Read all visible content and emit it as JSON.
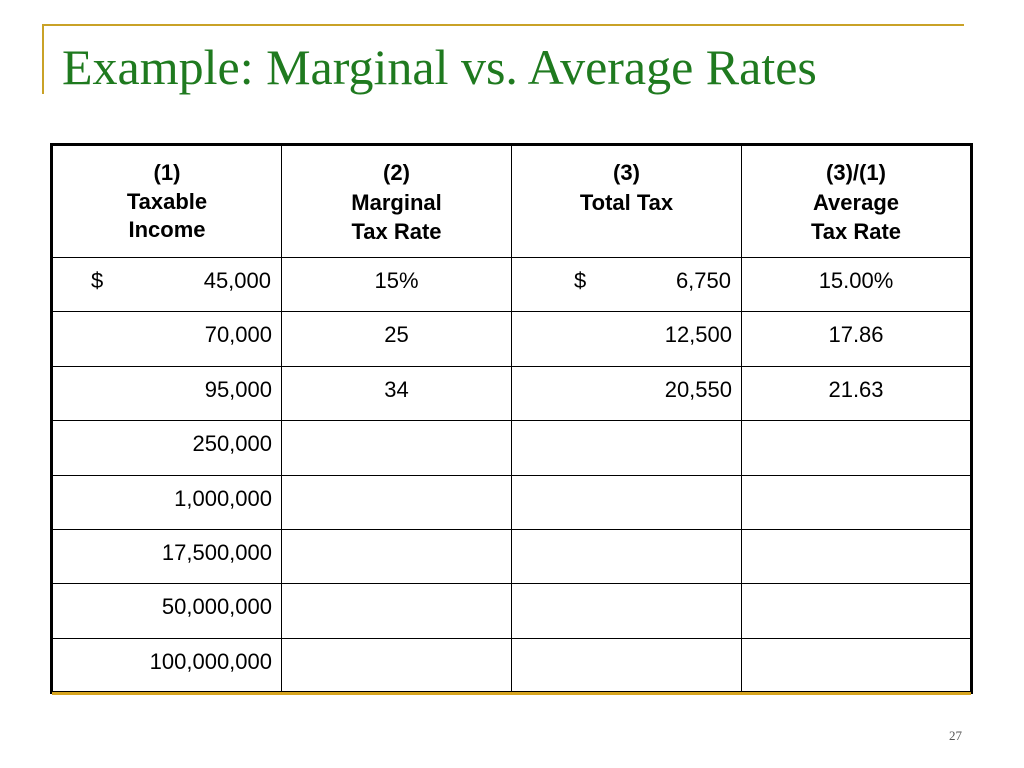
{
  "title": "Example: Marginal vs. Average Rates",
  "table": {
    "headers": [
      {
        "num": "(1)",
        "lines": [
          "Taxable Income"
        ]
      },
      {
        "num": "(2)",
        "lines": [
          "Marginal",
          "Tax Rate"
        ]
      },
      {
        "num": "(3)",
        "lines": [
          "Total Tax"
        ]
      },
      {
        "num": "(3)/(1)",
        "lines": [
          "Average",
          "Tax Rate"
        ]
      }
    ],
    "currency_symbol": "$",
    "rows": [
      {
        "income": "45,000",
        "marginal": "15%",
        "total": "6,750",
        "average": "15.00%"
      },
      {
        "income": "70,000",
        "marginal": "25",
        "total": "12,500",
        "average": "17.86"
      },
      {
        "income": "95,000",
        "marginal": "34",
        "total": "20,550",
        "average": "21.63"
      },
      {
        "income": "250,000",
        "marginal": "",
        "total": "",
        "average": ""
      },
      {
        "income": "1,000,000",
        "marginal": "",
        "total": "",
        "average": ""
      },
      {
        "income": "17,500,000",
        "marginal": "",
        "total": "",
        "average": ""
      },
      {
        "income": "50,000,000",
        "marginal": "",
        "total": "",
        "average": ""
      },
      {
        "income": "100,000,000",
        "marginal": "",
        "total": "",
        "average": ""
      }
    ]
  },
  "page_number": "27",
  "colors": {
    "title": "#1f7a1f",
    "accent": "#c9a227",
    "border": "#000000"
  }
}
